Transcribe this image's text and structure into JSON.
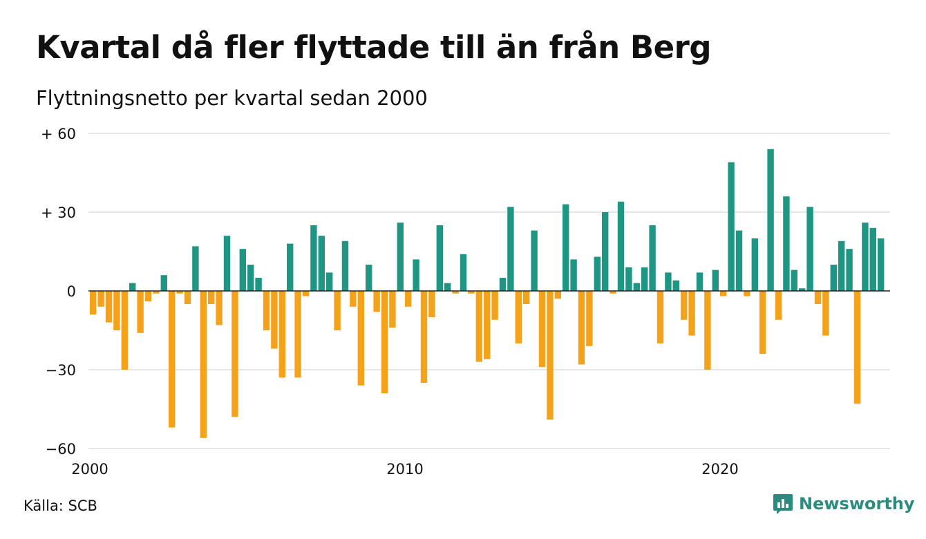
{
  "title": "Kvartal då fler flyttade till än från Berg",
  "subtitle": "Flyttningsnetto per kvartal sedan 2000",
  "source": "Källa: SCB",
  "brand": "Newsworthy",
  "colors": {
    "positive": "#1f9584",
    "negative": "#f5a21b",
    "grid": "#dddddd",
    "brand": "#2a8c7e"
  },
  "chart_data": {
    "type": "bar",
    "x_start": "2000 Q1",
    "x_ticks": [
      {
        "label": "2000",
        "year": 2000
      },
      {
        "label": "2010",
        "year": 2010
      },
      {
        "label": "2020",
        "year": 2020
      }
    ],
    "y_ticks": [
      {
        "label": "+ 60",
        "value": 60
      },
      {
        "label": "+ 30",
        "value": 30
      },
      {
        "label": "0",
        "value": 0
      },
      {
        "label": "−30",
        "value": -30
      },
      {
        "label": "−60",
        "value": -60
      }
    ],
    "ylim": [
      -60,
      60
    ],
    "grid": true,
    "values": [
      -9,
      -6,
      -12,
      -15,
      -30,
      3,
      -16,
      -4,
      -1,
      6,
      -52,
      -1,
      -5,
      17,
      -56,
      -5,
      -13,
      21,
      -48,
      16,
      10,
      5,
      -15,
      -22,
      -33,
      18,
      -33,
      -2,
      25,
      21,
      7,
      -15,
      19,
      -6,
      -36,
      10,
      -8,
      -39,
      -14,
      26,
      -6,
      12,
      -35,
      -10,
      25,
      3,
      -1,
      14,
      -1,
      -27,
      -26,
      -11,
      5,
      32,
      -20,
      -5,
      23,
      -29,
      -49,
      -3,
      33,
      12,
      -28,
      -21,
      13,
      30,
      -1,
      34,
      9,
      3,
      9,
      25,
      -20,
      7,
      4,
      -11,
      -17,
      7,
      -30,
      8,
      -2,
      49,
      23,
      -2,
      20,
      -24,
      54,
      -11,
      36,
      8,
      1,
      32,
      -5,
      -17,
      10,
      19,
      16,
      -43,
      26,
      24,
      20
    ]
  }
}
